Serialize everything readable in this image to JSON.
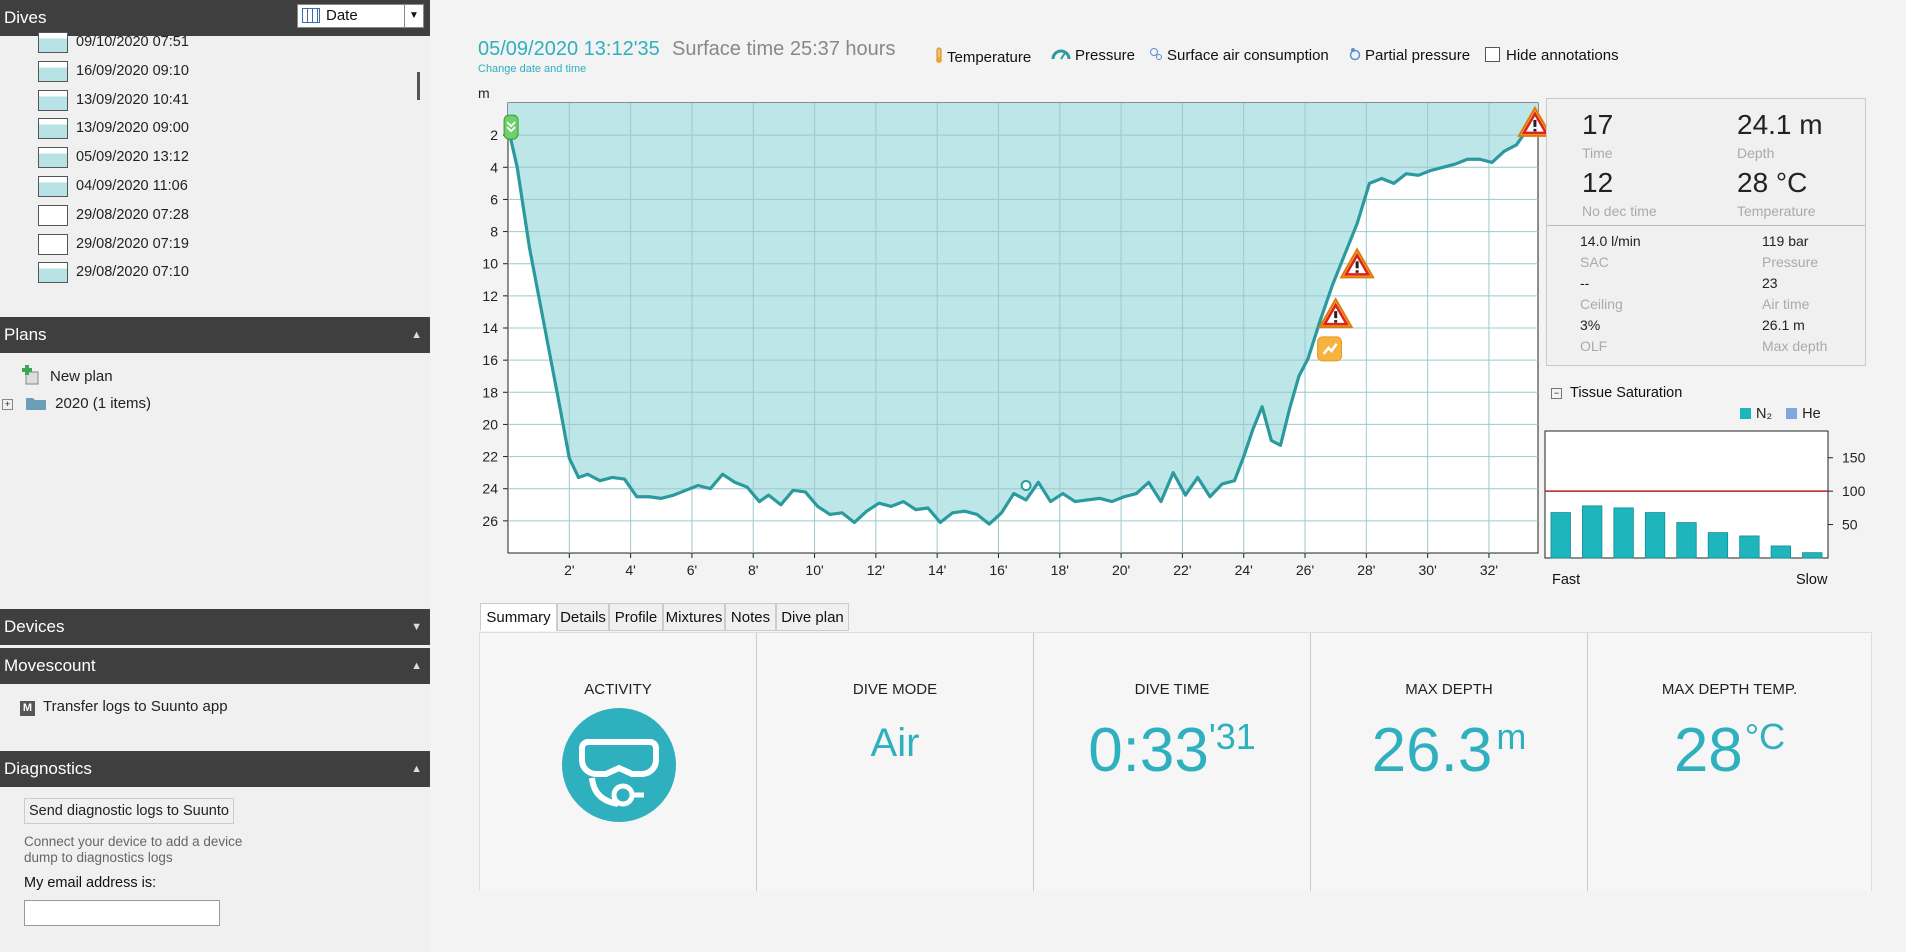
{
  "sidebar": {
    "dives": {
      "header": "Dives",
      "sort_value": "Date",
      "items": [
        {
          "label": "09/10/2020 07:51",
          "thumb": "profile"
        },
        {
          "label": "16/09/2020 09:10",
          "thumb": "profile"
        },
        {
          "label": "13/09/2020 10:41",
          "thumb": "profile"
        },
        {
          "label": "13/09/2020 09:00",
          "thumb": "profile"
        },
        {
          "label": "05/09/2020 13:12",
          "thumb": "profile"
        },
        {
          "label": "04/09/2020 11:06",
          "thumb": "profile"
        },
        {
          "label": "29/08/2020 07:28",
          "thumb": "empty"
        },
        {
          "label": "29/08/2020 07:19",
          "thumb": "empty"
        },
        {
          "label": "29/08/2020 07:10",
          "thumb": "profile"
        }
      ]
    },
    "plans": {
      "header": "Plans",
      "new_plan": "New plan",
      "folder": "2020 (1 items)"
    },
    "devices": {
      "header": "Devices"
    },
    "movescount": {
      "header": "Movescount",
      "transfer": "Transfer logs to Suunto app"
    },
    "diagnostics": {
      "header": "Diagnostics",
      "send_button": "Send diagnostic logs to Suunto",
      "note_line1": "Connect your device to add a device",
      "note_line2": "dump to diagnostics logs",
      "email_label": "My email address is:",
      "email_value": ""
    }
  },
  "header": {
    "datetime": "05/09/2020 13:12'35",
    "surface_time": "Surface time 25:37 hours",
    "change_date": "Change date and time",
    "legend": {
      "temperature": "Temperature",
      "pressure": "Pressure",
      "sac": "Surface air consumption",
      "partial_pressure": "Partial pressure",
      "hide_annotations": "Hide annotations"
    }
  },
  "chart_data": {
    "type": "area",
    "ylabel": "m",
    "yticks": [
      "2",
      "4",
      "6",
      "8",
      "10",
      "12",
      "14",
      "16",
      "18",
      "20",
      "22",
      "24",
      "26"
    ],
    "xticks": [
      "2'",
      "4'",
      "6'",
      "8'",
      "10'",
      "12'",
      "14'",
      "16'",
      "18'",
      "20'",
      "22'",
      "24'",
      "26'",
      "28'",
      "30'",
      "32'"
    ],
    "xlim": [
      0,
      33.6
    ],
    "ylim": [
      0,
      28
    ],
    "y_inverted": true,
    "grid": true,
    "colors": {
      "fill": "#bde6e9",
      "line": "#2a9a9f",
      "grid": "#9cc9cd"
    },
    "series": [
      {
        "x": [
          0,
          0.3,
          0.7,
          1.2,
          1.7,
          2.0,
          2.3,
          2.6,
          3.0,
          3.4,
          3.8,
          4.2,
          4.6,
          5.0,
          5.4,
          5.8,
          6.2,
          6.6,
          7.0,
          7.4,
          7.8,
          8.2,
          8.5,
          8.9,
          9.3,
          9.7,
          10.1,
          10.5,
          10.9,
          11.3,
          11.7,
          12.1,
          12.5,
          12.9,
          13.3,
          13.7,
          14.1,
          14.5,
          14.9,
          15.3,
          15.7,
          16.1,
          16.5,
          16.9,
          17.3,
          17.7,
          18.1,
          18.5,
          18.9,
          19.3,
          19.7,
          20.1,
          20.5,
          20.9,
          21.3,
          21.7,
          22.1,
          22.5,
          22.9,
          23.3,
          23.7,
          24.0,
          24.3,
          24.6,
          24.9,
          25.2,
          25.5,
          25.8,
          26.1,
          26.5,
          26.9,
          27.3,
          27.7,
          28.1,
          28.5,
          28.9,
          29.3,
          29.7,
          30.1,
          30.5,
          30.9,
          31.3,
          31.7,
          32.1,
          32.5,
          32.9,
          33.3,
          33.6
        ],
        "y": [
          1.5,
          4,
          9,
          14,
          19,
          22.1,
          23.3,
          23.1,
          23.5,
          23.3,
          23.4,
          24.5,
          24.5,
          24.6,
          24.4,
          24.1,
          23.8,
          24.0,
          23.1,
          23.6,
          23.9,
          24.8,
          24.4,
          25.0,
          24.1,
          24.2,
          25.1,
          25.6,
          25.5,
          26.1,
          25.4,
          24.9,
          25.1,
          24.8,
          25.3,
          25.2,
          26.1,
          25.5,
          25.4,
          25.6,
          26.2,
          25.5,
          24.3,
          24.7,
          23.6,
          24.8,
          24.3,
          24.8,
          24.7,
          24.6,
          24.8,
          24.5,
          24.3,
          23.6,
          24.8,
          23.0,
          24.4,
          23.3,
          24.5,
          23.7,
          23.5,
          22.0,
          20.3,
          18.9,
          21.0,
          21.3,
          19.0,
          17.0,
          15.9,
          13.5,
          11.3,
          9.4,
          7.5,
          5.0,
          4.7,
          5.0,
          4.4,
          4.5,
          4.2,
          4.0,
          3.8,
          3.5,
          3.5,
          3.7,
          3.0,
          2.6,
          1.5,
          1.0
        ]
      }
    ],
    "markers": [
      {
        "x": 0.1,
        "y": 1.5,
        "kind": "start"
      },
      {
        "x": 26.8,
        "y": 15.3,
        "kind": "event"
      },
      {
        "x": 27.0,
        "y": 13.2,
        "kind": "warning"
      },
      {
        "x": 27.7,
        "y": 10.1,
        "kind": "warning"
      },
      {
        "x": 33.5,
        "y": 1.3,
        "kind": "warning"
      },
      {
        "x": 16.9,
        "y": 23.8,
        "kind": "cursor"
      }
    ]
  },
  "info": {
    "time": {
      "value": "17",
      "label": "Time"
    },
    "depth": {
      "value": "24.1 m",
      "label": "Depth"
    },
    "no_dec": {
      "value": "12",
      "label": "No dec time"
    },
    "temp": {
      "value": "28 °C",
      "label": "Temperature"
    },
    "sac": {
      "value": "14.0 l/min",
      "label": "SAC"
    },
    "pressure": {
      "value": "119 bar",
      "label": "Pressure"
    },
    "ceiling": {
      "value": "--",
      "label": "Ceiling"
    },
    "air_time": {
      "value": "23",
      "label": "Air time"
    },
    "olf": {
      "value": "3%",
      "label": "OLF"
    },
    "max_depth": {
      "value": "26.1 m",
      "label": "Max depth"
    }
  },
  "tissue": {
    "title": "Tissue Saturation",
    "legend_n2": "N₂",
    "legend_he": "He",
    "left_label": "Fast",
    "right_label": "Slow",
    "yticks": [
      "150",
      "100",
      "50"
    ],
    "ylim": [
      0,
      190
    ],
    "limit_line": 100,
    "n2_values": [
      68,
      78,
      75,
      68,
      53,
      38,
      33,
      18,
      8
    ],
    "colors": {
      "n2": "#1fb5bd",
      "he": "#7fa8e0",
      "limit": "#b21f1f"
    }
  },
  "tabs": [
    "Summary",
    "Details",
    "Profile",
    "Mixtures",
    "Notes",
    "Dive plan"
  ],
  "active_tab": "Summary",
  "summary": {
    "activity": {
      "title": "ACTIVITY"
    },
    "dive_mode": {
      "title": "DIVE MODE",
      "value": "Air"
    },
    "dive_time": {
      "title": "DIVE TIME",
      "value": "0:33",
      "sup": "'31"
    },
    "max_depth": {
      "title": "MAX DEPTH",
      "value": "26.3",
      "unit": "m"
    },
    "max_depth_temp": {
      "title": "MAX DEPTH TEMP.",
      "value": "28",
      "unit": "°C"
    }
  }
}
